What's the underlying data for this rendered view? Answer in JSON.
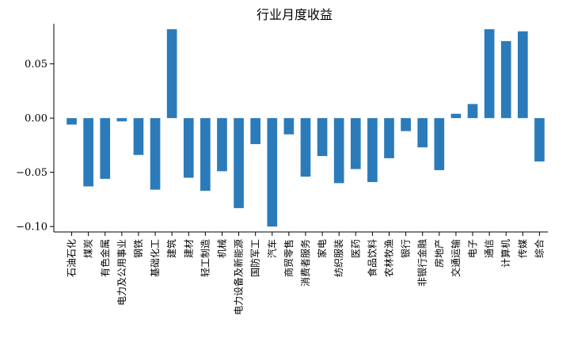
{
  "chart_data": {
    "type": "bar",
    "title": "行业月度收益",
    "xlabel": "",
    "ylabel": "",
    "ylim": [
      -0.105,
      0.087
    ],
    "yticks": [
      -0.1,
      -0.05,
      0.0,
      0.05
    ],
    "ytick_labels": [
      "−0.10",
      "−0.05",
      "0.00",
      "0.05"
    ],
    "grid": false,
    "legend": "none",
    "bar_color": "#2b7bba",
    "categories": [
      "石油石化",
      "煤炭",
      "有色金属",
      "电力及公用事业",
      "钢铁",
      "基础化工",
      "建筑",
      "建材",
      "轻工制造",
      "机械",
      "电力设备及新能源",
      "国防军工",
      "汽车",
      "商贸零售",
      "消费者服务",
      "家电",
      "纺织服装",
      "医药",
      "食品饮料",
      "农林牧渔",
      "银行",
      "非银行金融",
      "房地产",
      "交通运输",
      "电子",
      "通信",
      "计算机",
      "传媒",
      "综合"
    ],
    "values": [
      -0.006,
      -0.063,
      -0.056,
      -0.003,
      -0.034,
      -0.066,
      0.082,
      -0.055,
      -0.067,
      -0.049,
      -0.083,
      -0.024,
      -0.1,
      -0.015,
      -0.054,
      -0.035,
      -0.06,
      -0.047,
      -0.059,
      -0.037,
      -0.012,
      -0.027,
      -0.048,
      0.004,
      0.013,
      0.082,
      0.071,
      0.08,
      -0.04
    ]
  }
}
